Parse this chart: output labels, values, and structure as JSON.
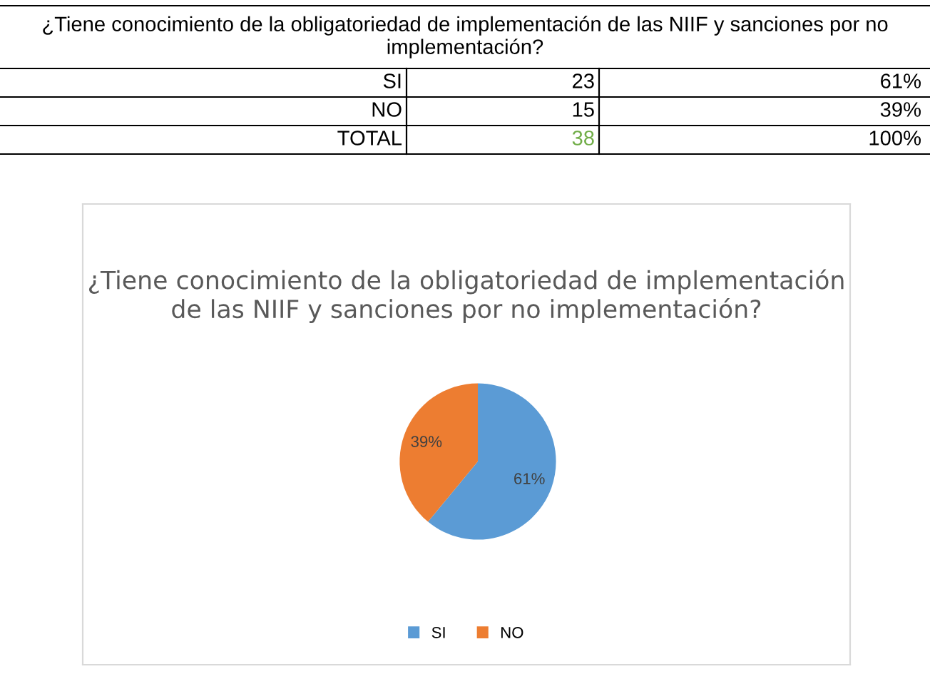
{
  "chart_data": [
    {
      "type": "other",
      "title": "¿Tiene conocimiento de la obligatoriedad de implementación de las NIIF y sanciones por no implementación?",
      "annotations": [
        "SI",
        "23",
        "61%",
        "NO",
        "15",
        "39%",
        "TOTAL",
        "38",
        "100%"
      ],
      "colors": [
        "#000000",
        "#000000",
        "#000000",
        "#000000",
        "#000000",
        "#000000",
        "#000000",
        "#70ad47",
        "#000000"
      ]
    },
    {
      "type": "pie",
      "title": "¿Tiene conocimiento de la obligatoriedad de implementación de las NIIF y sanciones por no implementación?",
      "categories": [
        "SI",
        "NO"
      ],
      "values": [
        61,
        39
      ],
      "colors": [
        "#5b9bd5",
        "#ed7d31"
      ],
      "value_labels": [
        "61%",
        "39%"
      ],
      "legend": "bottom"
    }
  ]
}
